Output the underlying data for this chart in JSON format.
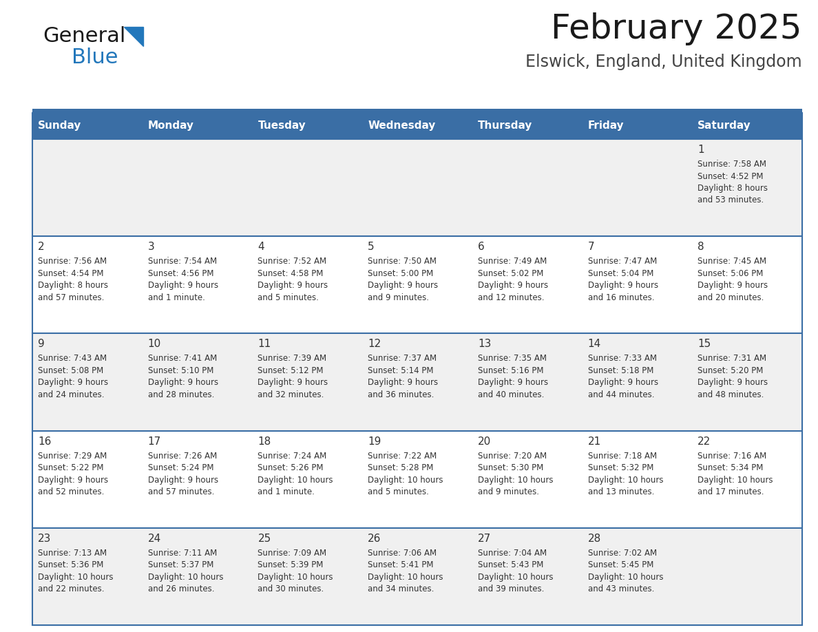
{
  "title": "February 2025",
  "subtitle": "Elswick, England, United Kingdom",
  "header_bg": "#3a6ea5",
  "header_text_color": "#ffffff",
  "cell_bg_light": "#f0f0f0",
  "cell_bg_white": "#ffffff",
  "border_color": "#3a6ea5",
  "text_color": "#333333",
  "days_of_week": [
    "Sunday",
    "Monday",
    "Tuesday",
    "Wednesday",
    "Thursday",
    "Friday",
    "Saturday"
  ],
  "weeks": [
    [
      {
        "day": null,
        "info": null
      },
      {
        "day": null,
        "info": null
      },
      {
        "day": null,
        "info": null
      },
      {
        "day": null,
        "info": null
      },
      {
        "day": null,
        "info": null
      },
      {
        "day": null,
        "info": null
      },
      {
        "day": "1",
        "info": "Sunrise: 7:58 AM\nSunset: 4:52 PM\nDaylight: 8 hours\nand 53 minutes."
      }
    ],
    [
      {
        "day": "2",
        "info": "Sunrise: 7:56 AM\nSunset: 4:54 PM\nDaylight: 8 hours\nand 57 minutes."
      },
      {
        "day": "3",
        "info": "Sunrise: 7:54 AM\nSunset: 4:56 PM\nDaylight: 9 hours\nand 1 minute."
      },
      {
        "day": "4",
        "info": "Sunrise: 7:52 AM\nSunset: 4:58 PM\nDaylight: 9 hours\nand 5 minutes."
      },
      {
        "day": "5",
        "info": "Sunrise: 7:50 AM\nSunset: 5:00 PM\nDaylight: 9 hours\nand 9 minutes."
      },
      {
        "day": "6",
        "info": "Sunrise: 7:49 AM\nSunset: 5:02 PM\nDaylight: 9 hours\nand 12 minutes."
      },
      {
        "day": "7",
        "info": "Sunrise: 7:47 AM\nSunset: 5:04 PM\nDaylight: 9 hours\nand 16 minutes."
      },
      {
        "day": "8",
        "info": "Sunrise: 7:45 AM\nSunset: 5:06 PM\nDaylight: 9 hours\nand 20 minutes."
      }
    ],
    [
      {
        "day": "9",
        "info": "Sunrise: 7:43 AM\nSunset: 5:08 PM\nDaylight: 9 hours\nand 24 minutes."
      },
      {
        "day": "10",
        "info": "Sunrise: 7:41 AM\nSunset: 5:10 PM\nDaylight: 9 hours\nand 28 minutes."
      },
      {
        "day": "11",
        "info": "Sunrise: 7:39 AM\nSunset: 5:12 PM\nDaylight: 9 hours\nand 32 minutes."
      },
      {
        "day": "12",
        "info": "Sunrise: 7:37 AM\nSunset: 5:14 PM\nDaylight: 9 hours\nand 36 minutes."
      },
      {
        "day": "13",
        "info": "Sunrise: 7:35 AM\nSunset: 5:16 PM\nDaylight: 9 hours\nand 40 minutes."
      },
      {
        "day": "14",
        "info": "Sunrise: 7:33 AM\nSunset: 5:18 PM\nDaylight: 9 hours\nand 44 minutes."
      },
      {
        "day": "15",
        "info": "Sunrise: 7:31 AM\nSunset: 5:20 PM\nDaylight: 9 hours\nand 48 minutes."
      }
    ],
    [
      {
        "day": "16",
        "info": "Sunrise: 7:29 AM\nSunset: 5:22 PM\nDaylight: 9 hours\nand 52 minutes."
      },
      {
        "day": "17",
        "info": "Sunrise: 7:26 AM\nSunset: 5:24 PM\nDaylight: 9 hours\nand 57 minutes."
      },
      {
        "day": "18",
        "info": "Sunrise: 7:24 AM\nSunset: 5:26 PM\nDaylight: 10 hours\nand 1 minute."
      },
      {
        "day": "19",
        "info": "Sunrise: 7:22 AM\nSunset: 5:28 PM\nDaylight: 10 hours\nand 5 minutes."
      },
      {
        "day": "20",
        "info": "Sunrise: 7:20 AM\nSunset: 5:30 PM\nDaylight: 10 hours\nand 9 minutes."
      },
      {
        "day": "21",
        "info": "Sunrise: 7:18 AM\nSunset: 5:32 PM\nDaylight: 10 hours\nand 13 minutes."
      },
      {
        "day": "22",
        "info": "Sunrise: 7:16 AM\nSunset: 5:34 PM\nDaylight: 10 hours\nand 17 minutes."
      }
    ],
    [
      {
        "day": "23",
        "info": "Sunrise: 7:13 AM\nSunset: 5:36 PM\nDaylight: 10 hours\nand 22 minutes."
      },
      {
        "day": "24",
        "info": "Sunrise: 7:11 AM\nSunset: 5:37 PM\nDaylight: 10 hours\nand 26 minutes."
      },
      {
        "day": "25",
        "info": "Sunrise: 7:09 AM\nSunset: 5:39 PM\nDaylight: 10 hours\nand 30 minutes."
      },
      {
        "day": "26",
        "info": "Sunrise: 7:06 AM\nSunset: 5:41 PM\nDaylight: 10 hours\nand 34 minutes."
      },
      {
        "day": "27",
        "info": "Sunrise: 7:04 AM\nSunset: 5:43 PM\nDaylight: 10 hours\nand 39 minutes."
      },
      {
        "day": "28",
        "info": "Sunrise: 7:02 AM\nSunset: 5:45 PM\nDaylight: 10 hours\nand 43 minutes."
      },
      {
        "day": null,
        "info": null
      }
    ]
  ],
  "logo_general_color": "#1a1a1a",
  "logo_blue_color": "#2277bb",
  "logo_triangle_color": "#2277bb",
  "title_fontsize": 36,
  "subtitle_fontsize": 17,
  "header_fontsize": 11,
  "day_num_fontsize": 11,
  "info_fontsize": 8.5
}
